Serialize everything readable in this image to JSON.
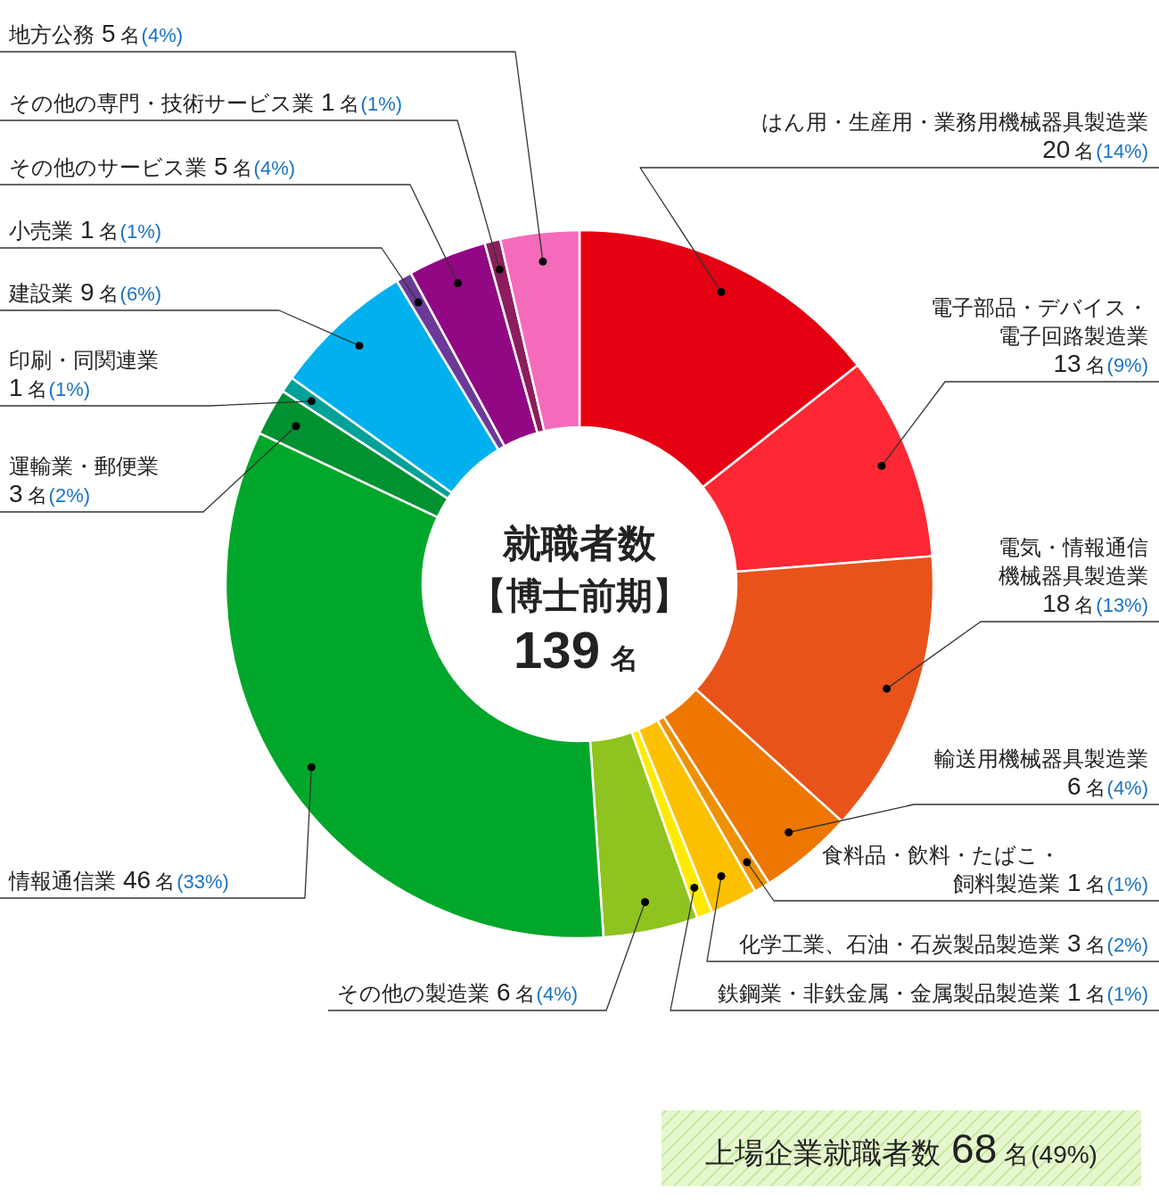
{
  "chart_data": {
    "type": "donut",
    "title": "就職者数",
    "subtitle": "【博士前期】",
    "categories": [
      "はん用・生産用・業務用機械器具製造業",
      "電子部品・デバイス・電子回路製造業",
      "電気・情報通信機械器具製造業",
      "輸送用機械器具製造業",
      "食料品・飲料・たばこ・飼料製造業",
      "化学工業、石油・石炭製品製造業",
      "鉄鋼業・非鉄金属・金属製品製造業",
      "その他の製造業",
      "情報通信業",
      "運輸業・郵便業",
      "印刷・同関連業",
      "建設業",
      "小売業",
      "その他のサービス業",
      "その他の専門・技術サービス業",
      "地方公務"
    ],
    "values": [
      20,
      13,
      18,
      6,
      1,
      3,
      1,
      6,
      46,
      3,
      1,
      9,
      1,
      5,
      1,
      5
    ],
    "colors": [
      "#e50012",
      "#fd2833",
      "#e8531a",
      "#ed7700",
      "#ef9000",
      "#fcc000",
      "#ffea00",
      "#8fc31f",
      "#00a72a",
      "#009130",
      "#00a199",
      "#00b1ee",
      "#6b3a99",
      "#920783",
      "#8c1d5e",
      "#f56bbb"
    ],
    "value_labels": [
      "20名(14%)",
      "13名(9%)",
      "18名(13%)",
      "6名(4%)",
      "1名(1%)",
      "3名(2%)",
      "1名(1%)",
      "6名(4%)",
      "46名(33%)",
      "3名(2%)",
      "1名(1%)",
      "9名(6%)",
      "1名(1%)",
      "5名(4%)",
      "1名(1%)",
      "5名(4%)"
    ],
    "annotations": [
      "139名",
      "上場企業就職者数 68名(49%)"
    ]
  }
}
